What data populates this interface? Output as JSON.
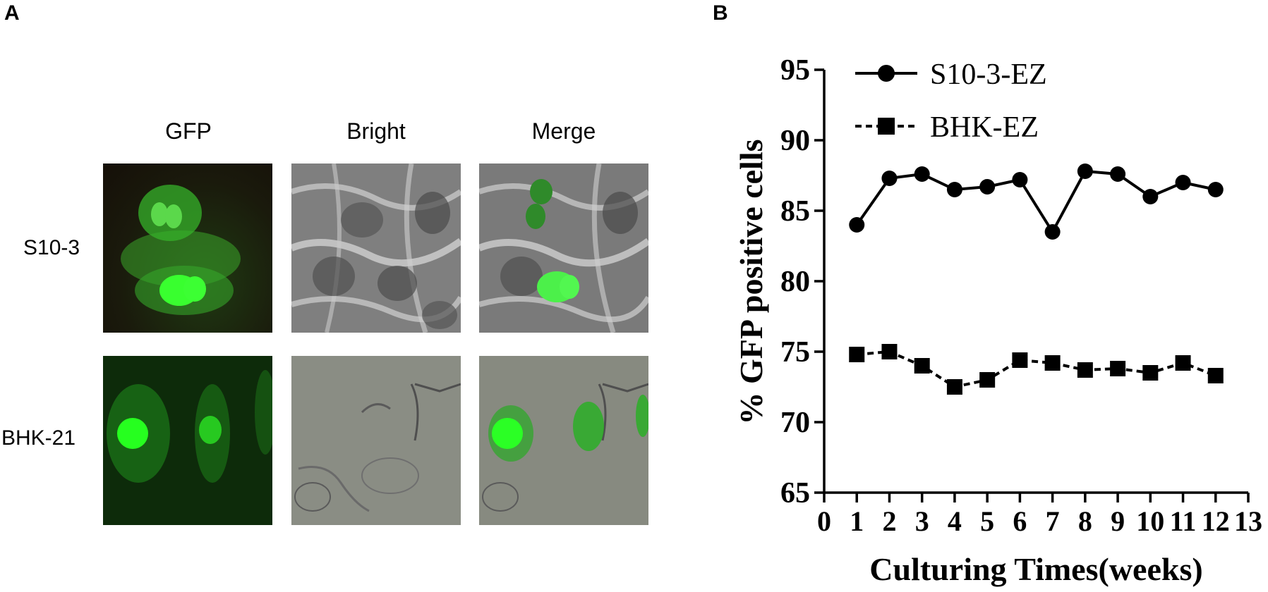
{
  "panel_a": {
    "letter": "A",
    "columns": [
      "GFP",
      "Bright",
      "Merge"
    ],
    "rows": [
      "S10-3",
      "BHK-21"
    ]
  },
  "panel_b": {
    "letter": "B"
  },
  "chart_data": {
    "type": "line",
    "xlabel": "Culturing Times(weeks)",
    "ylabel": "% GFP positive cells",
    "xlim": [
      0,
      13
    ],
    "ylim": [
      65,
      95
    ],
    "xticks": [
      "0",
      "1",
      "2",
      "3",
      "4",
      "5",
      "6",
      "7",
      "8",
      "9",
      "10",
      "11",
      "12",
      "13"
    ],
    "yticks": [
      "65",
      "70",
      "75",
      "80",
      "85",
      "90",
      "95"
    ],
    "legend_position": "top-left",
    "x": [
      1,
      2,
      3,
      4,
      5,
      6,
      7,
      8,
      9,
      10,
      11,
      12
    ],
    "series": [
      {
        "name": "S10-3-EZ",
        "marker": "circle",
        "line": "solid",
        "values": [
          84.0,
          87.3,
          87.6,
          86.5,
          86.7,
          87.2,
          83.5,
          87.8,
          87.6,
          86.0,
          87.0,
          86.5
        ]
      },
      {
        "name": "BHK-EZ",
        "marker": "square",
        "line": "dashed",
        "values": [
          74.8,
          75.0,
          74.0,
          72.5,
          73.0,
          74.4,
          74.2,
          73.7,
          73.8,
          73.5,
          74.2,
          73.3
        ]
      }
    ]
  }
}
